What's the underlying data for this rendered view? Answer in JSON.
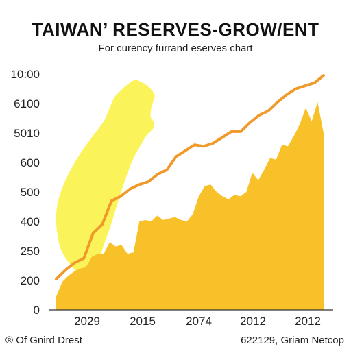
{
  "title": "TAIWAN’ RESERVES-GROW/ENT",
  "subtitle": "For curency furrand eserves chart",
  "footer": {
    "left": "® Of Gnird Drest",
    "right": "622129, Griam Netcop"
  },
  "chart_data": {
    "type": "area",
    "title": "TAIWAN’ RESERVES-GROW/ENT",
    "subtitle": "For curency furrand eserves chart",
    "y_tick_labels": [
      "0",
      "200",
      "250",
      "400",
      "500",
      "600",
      "5010",
      "6100",
      "10:00"
    ],
    "x_tick_labels": [
      "2029",
      "2015",
      "2074",
      "2012",
      "2012"
    ],
    "grid": false,
    "colors": {
      "area": "#f8c12a",
      "line": "#ef9a2b",
      "island": "#fbf35a"
    },
    "series": [
      {
        "kind": "area",
        "values": [
          0.45,
          0.95,
          1.15,
          1.3,
          1.4,
          1.45,
          1.8,
          1.9,
          1.9,
          2.3,
          2.15,
          2.2,
          1.9,
          1.95,
          3.0,
          3.05,
          3.0,
          3.2,
          3.05,
          3.1,
          3.15,
          3.05,
          3.0,
          3.25,
          3.85,
          4.2,
          4.25,
          4.0,
          3.85,
          3.75,
          3.9,
          3.85,
          4.0,
          4.65,
          4.4,
          4.75,
          5.15,
          5.1,
          5.6,
          5.55,
          5.9,
          6.3,
          6.85,
          6.4,
          7.05,
          6.0
        ]
      },
      {
        "kind": "line",
        "values": [
          1.05,
          1.35,
          1.6,
          1.75,
          2.6,
          2.9,
          3.7,
          3.85,
          4.1,
          4.25,
          4.35,
          4.6,
          4.75,
          5.2,
          5.4,
          5.6,
          5.55,
          5.65,
          5.85,
          6.05,
          6.05,
          6.35,
          6.6,
          6.75,
          7.05,
          7.3,
          7.5,
          7.6,
          7.7,
          7.95
        ]
      }
    ]
  }
}
